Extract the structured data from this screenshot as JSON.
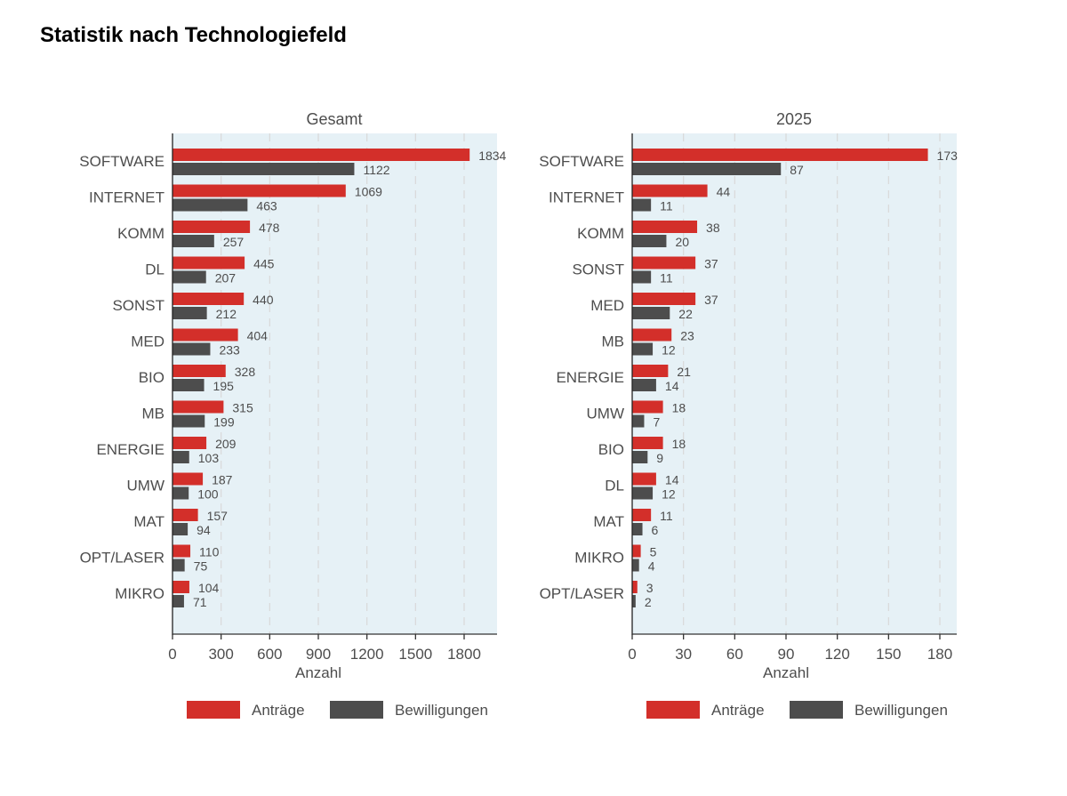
{
  "page_title": "Statistik nach Technologiefeld",
  "colors": {
    "antraege": "#d32f2a",
    "bewilligungen": "#4d4d4d",
    "panel_bg": "#e6f1f6",
    "grid": "#d9d9d9",
    "text": "#4d4d4d"
  },
  "chart_data": [
    {
      "type": "bar",
      "orientation": "horizontal",
      "title": "Gesamt",
      "xlabel": "Anzahl",
      "ylabel": "",
      "xlim": [
        0,
        2000
      ],
      "xticks": [
        0,
        300,
        600,
        900,
        1200,
        1500,
        1800
      ],
      "grid": true,
      "legend_position": "bottom",
      "categories": [
        "SOFTWARE",
        "INTERNET",
        "KOMM",
        "DL",
        "SONST",
        "MED",
        "BIO",
        "MB",
        "ENERGIE",
        "UMW",
        "MAT",
        "OPT/LASER",
        "MIKRO"
      ],
      "series": [
        {
          "name": "Anträge",
          "values": [
            1834,
            1069,
            478,
            445,
            440,
            404,
            328,
            315,
            209,
            187,
            157,
            110,
            104
          ]
        },
        {
          "name": "Bewilligungen",
          "values": [
            1122,
            463,
            257,
            207,
            212,
            233,
            195,
            199,
            103,
            100,
            94,
            75,
            71
          ]
        }
      ]
    },
    {
      "type": "bar",
      "orientation": "horizontal",
      "title": "2025",
      "xlabel": "Anzahl",
      "ylabel": "",
      "xlim": [
        0,
        190
      ],
      "xticks": [
        0,
        30,
        60,
        90,
        120,
        150,
        180
      ],
      "grid": true,
      "legend_position": "bottom",
      "categories": [
        "SOFTWARE",
        "INTERNET",
        "KOMM",
        "SONST",
        "MED",
        "MB",
        "ENERGIE",
        "UMW",
        "BIO",
        "DL",
        "MAT",
        "MIKRO",
        "OPT/LASER"
      ],
      "series": [
        {
          "name": "Anträge",
          "values": [
            173,
            44,
            38,
            37,
            37,
            23,
            21,
            18,
            18,
            14,
            11,
            5,
            3
          ]
        },
        {
          "name": "Bewilligungen",
          "values": [
            87,
            11,
            20,
            11,
            22,
            12,
            14,
            7,
            9,
            12,
            6,
            4,
            2
          ]
        }
      ]
    }
  ]
}
